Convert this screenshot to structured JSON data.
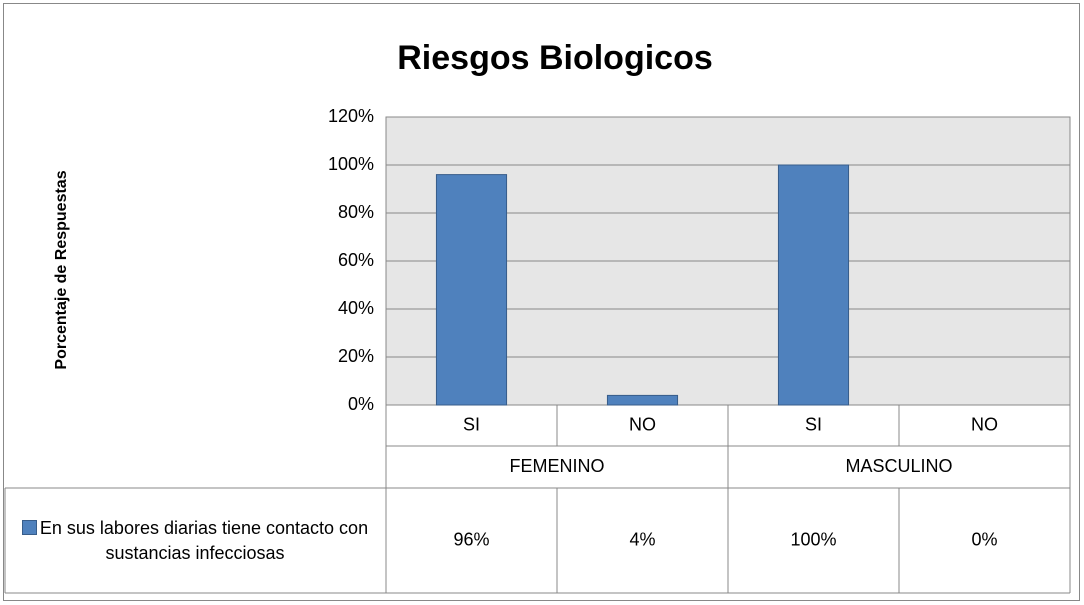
{
  "chart_data": {
    "type": "bar",
    "title": "Riesgos Biologicos",
    "y_label": "Porcentaje de Respuestas",
    "categories": [
      "SI",
      "NO",
      "SI",
      "NO"
    ],
    "groups": [
      "FEMENINO",
      "MASCULINO"
    ],
    "series": [
      {
        "name": "En sus labores diarias tiene contacto con sustancias infecciosas",
        "color": "#4f81bd",
        "values": [
          96,
          4,
          100,
          0
        ],
        "value_labels": [
          "96%",
          "4%",
          "100%",
          "0%"
        ]
      }
    ],
    "ylim": [
      0,
      120
    ],
    "yticks": [
      {
        "value": 0,
        "label": "0%"
      },
      {
        "value": 20,
        "label": "20%"
      },
      {
        "value": 40,
        "label": "40%"
      },
      {
        "value": 60,
        "label": "60%"
      },
      {
        "value": 80,
        "label": "80%"
      },
      {
        "value": 100,
        "label": "100%"
      },
      {
        "value": 120,
        "label": "120%"
      }
    ],
    "grid": true
  }
}
